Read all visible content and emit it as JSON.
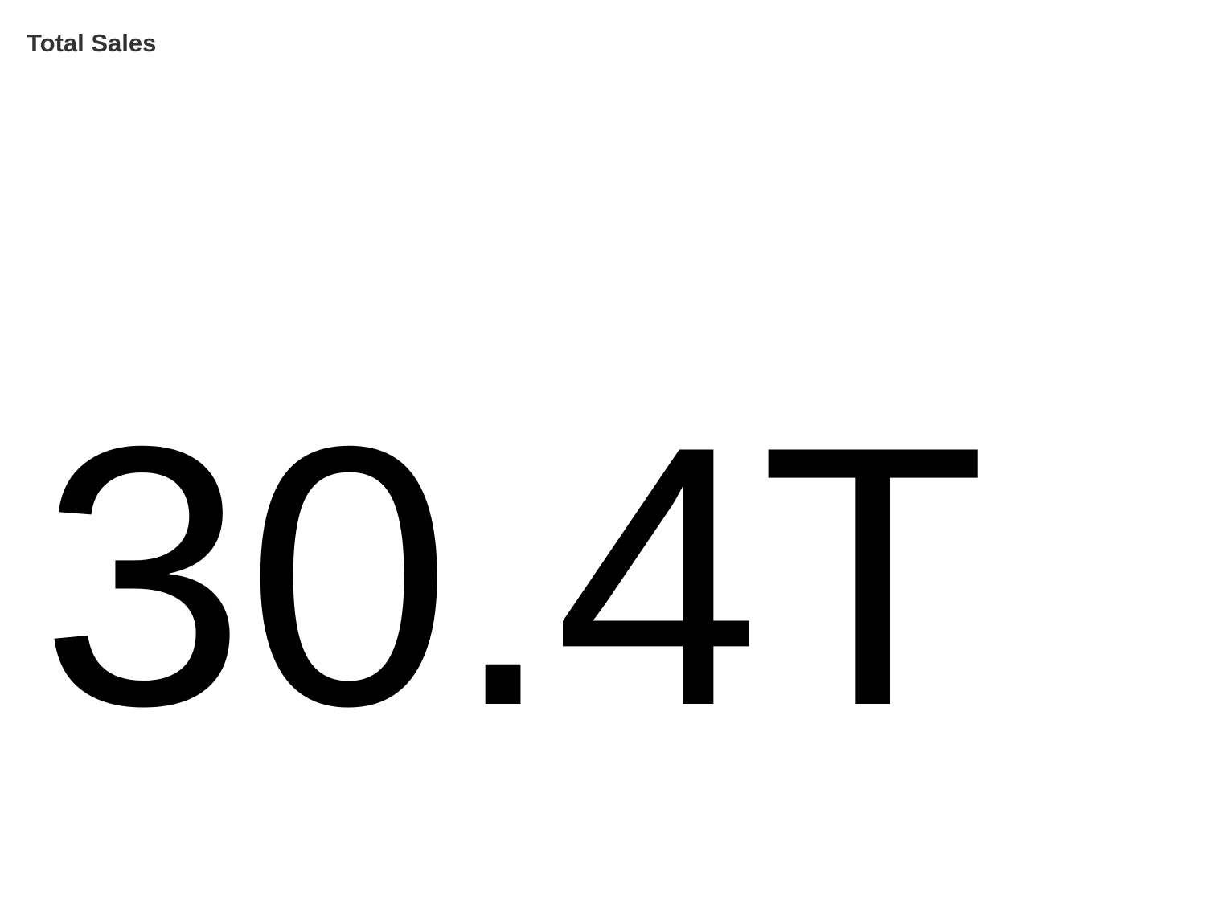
{
  "card": {
    "title": "Total Sales"
  },
  "chart_data": {
    "type": "table",
    "title": "Total Sales",
    "value": 30.4,
    "unit_suffix": "T",
    "display_value": "30.4T"
  },
  "colors": {
    "background": "#ffffff",
    "title": "#333333",
    "value": "#000000"
  }
}
